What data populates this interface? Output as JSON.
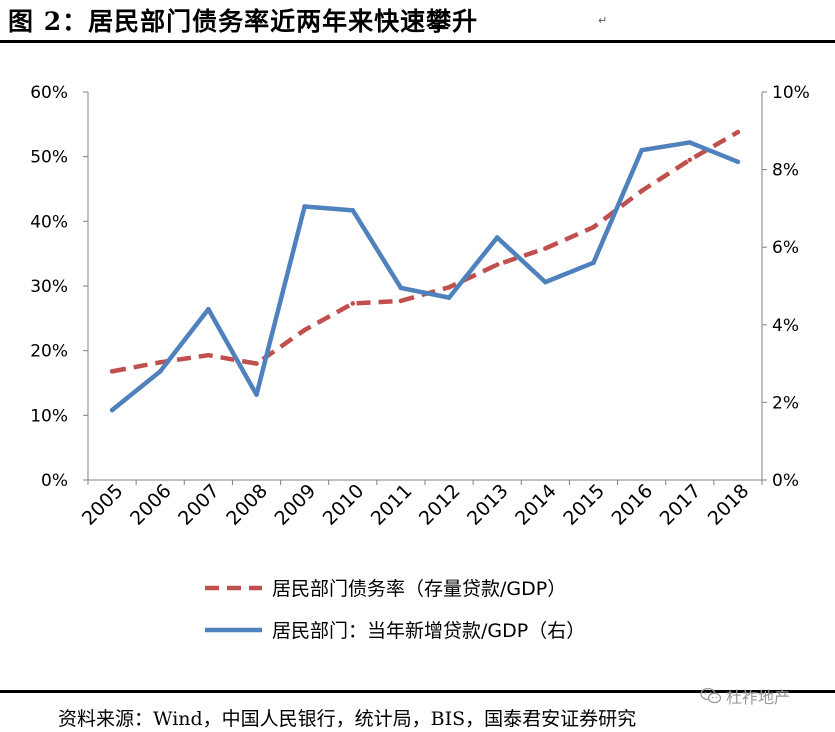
{
  "figure_title": "图 2：居民部门债务率近两年来快速攀升",
  "title_mark": "↵",
  "source": "资料来源：Wind，中国人民银行，统计局，BIS，国泰君安证券研究",
  "watermark": "杜祚地产",
  "watermark_icon": "wechat-icon",
  "colors": {
    "debt_ratio": "#C0504D",
    "new_loans": "#4F81BD",
    "axis": "#808080"
  },
  "chart_data": {
    "type": "line",
    "title": "",
    "xlabel": "",
    "ylabel": "",
    "x": [
      "2005",
      "2006",
      "2007",
      "2008",
      "2009",
      "2010",
      "2011",
      "2012",
      "2013",
      "2014",
      "2015",
      "2016",
      "2017",
      "2018"
    ],
    "ylim": [
      0,
      60
    ],
    "yticks": [
      "0%",
      "10%",
      "20%",
      "30%",
      "40%",
      "50%",
      "60%"
    ],
    "y2lim": [
      0,
      10
    ],
    "y2ticks": [
      "0%",
      "2%",
      "4%",
      "6%",
      "8%",
      "10%"
    ],
    "legend_position": "bottom",
    "series": [
      {
        "name": "居民部门债务率（存量贷款/GDP）",
        "axis": "left",
        "style": "dashed",
        "values": [
          16.8,
          18.2,
          19.3,
          18.0,
          23.2,
          27.3,
          27.7,
          29.8,
          33.3,
          35.8,
          39.1,
          44.7,
          49.5,
          53.8
        ]
      },
      {
        "name": "居民部门：当年新增贷款/GDP（右）",
        "axis": "right",
        "style": "solid",
        "values": [
          1.8,
          2.8,
          4.4,
          2.2,
          7.05,
          6.95,
          4.95,
          4.7,
          6.25,
          5.1,
          5.6,
          8.5,
          8.7,
          8.2
        ]
      }
    ]
  }
}
